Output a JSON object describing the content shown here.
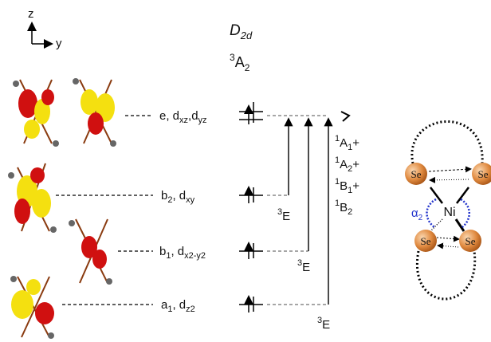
{
  "axes": {
    "z": "z",
    "y": "y"
  },
  "symmetry": {
    "main": "D",
    "sub": "2d"
  },
  "ground_state": {
    "sup": "3",
    "main": "A",
    "sub": "2"
  },
  "levels": [
    {
      "parts": [
        "e, d",
        "xz",
        ",d",
        "yz"
      ]
    },
    {
      "parts": [
        "b",
        "2",
        ", d",
        "xy"
      ]
    },
    {
      "parts": [
        "b",
        "1",
        ", d",
        "x2-y2"
      ]
    },
    {
      "parts": [
        "a",
        "1",
        ", d",
        "z2"
      ]
    }
  ],
  "transitions": [
    {
      "sup": "3",
      "main": "E"
    },
    {
      "sup": "3",
      "main": "E"
    },
    {
      "sup": "3",
      "main": "E"
    }
  ],
  "excited_states": [
    {
      "sup": "1",
      "main": "A",
      "sub": "1",
      "tail": "+"
    },
    {
      "sup": "1",
      "main": "A",
      "sub": "2",
      "tail": "+"
    },
    {
      "sup": "1",
      "main": "B",
      "sub": "1",
      "tail": "+"
    },
    {
      "sup": "1",
      "main": "B",
      "sub": "2"
    }
  ],
  "structure": {
    "atoms": [
      "Se",
      "Se",
      "Se",
      "Se"
    ],
    "center": "Ni",
    "angle": {
      "main": "α",
      "sub": "2"
    }
  }
}
